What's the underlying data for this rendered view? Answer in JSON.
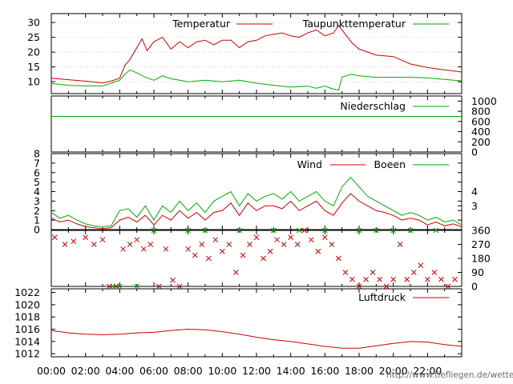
{
  "footer_url": "http://www.tiefliegen.de/wetter/",
  "x_ticks": [
    "00:00",
    "02:00",
    "04:00",
    "06:00",
    "08:00",
    "10:00",
    "12:00",
    "14:00",
    "16:00",
    "18:00",
    "20:00",
    "22:00"
  ],
  "colors": {
    "red": "#cc0000",
    "green": "#00aa00",
    "grid": "#aaaaaa",
    "axis": "#000000"
  },
  "chart_data": [
    {
      "type": "line",
      "y_ticks": [
        10,
        15,
        20,
        25,
        30
      ],
      "ylim": [
        6,
        33
      ],
      "legend": [
        "Temperatur",
        "Taupunkttemperatur"
      ],
      "series": [
        {
          "name": "Temperatur",
          "color": "#cc0000",
          "x": [
            0,
            1,
            2,
            3,
            3.5,
            4,
            4.3,
            4.6,
            5,
            5.3,
            5.6,
            6,
            6.5,
            7,
            7.5,
            8,
            8.5,
            9,
            9.5,
            10,
            10.5,
            11,
            11.5,
            12,
            12.5,
            13,
            13.5,
            14,
            14.5,
            15,
            15.5,
            16,
            16.5,
            16.8,
            17.2,
            17.6,
            18,
            19,
            20,
            21,
            22,
            23,
            24
          ],
          "y": [
            11.2,
            10.7,
            10.2,
            9.6,
            10.2,
            11.2,
            15.5,
            17.5,
            21.5,
            24.5,
            20.5,
            23.5,
            25,
            21,
            23.5,
            21.5,
            23.5,
            24,
            22.5,
            24,
            24,
            21.5,
            23.5,
            24,
            25.5,
            26,
            26.5,
            25.5,
            25,
            26.5,
            27.5,
            25.5,
            26.5,
            29,
            26,
            23,
            21,
            19,
            18.5,
            16,
            14.8,
            14,
            13.3
          ]
        },
        {
          "name": "Taupunkttemperatur",
          "color": "#00aa00",
          "x": [
            0,
            1,
            2,
            3,
            3.5,
            4,
            4.3,
            4.6,
            5,
            5.5,
            6,
            6.5,
            7,
            7.5,
            8,
            9,
            10,
            11,
            12,
            13,
            14,
            15,
            15.5,
            16,
            16.5,
            16.8,
            17,
            17.5,
            18,
            19,
            20,
            21,
            22,
            23,
            24
          ],
          "y": [
            9.4,
            8.8,
            8.6,
            8.6,
            9.5,
            10.5,
            12.5,
            14,
            13,
            11.5,
            10.5,
            12,
            11,
            10.5,
            10,
            10.5,
            10,
            10.5,
            9.5,
            8.8,
            8.2,
            8.5,
            7.8,
            8.5,
            7.5,
            7.2,
            11.5,
            12.5,
            12,
            11.5,
            11.5,
            11.5,
            11.3,
            10.8,
            10.3
          ]
        }
      ]
    },
    {
      "type": "line",
      "y_ticks_right": [
        0,
        200,
        400,
        600,
        800,
        1000
      ],
      "ylim": [
        0,
        1100
      ],
      "legend": [
        "Niederschlag"
      ],
      "series": [
        {
          "name": "Niederschlag",
          "color": "#00aa00",
          "x": [
            0,
            24
          ],
          "y": [
            700,
            700
          ]
        }
      ]
    },
    {
      "type": "line",
      "y_ticks": [
        0,
        1,
        2,
        3,
        4,
        5,
        6,
        7,
        8
      ],
      "y_ticks_right": [
        {
          "label": "3",
          "y": 2.5
        },
        {
          "label": "4",
          "y": 4.0
        }
      ],
      "ylim": [
        0,
        8
      ],
      "legend": [
        "Wind",
        "Boeen"
      ],
      "series": [
        {
          "name": "Wind",
          "color": "#cc0000",
          "x": [
            0,
            0.5,
            1,
            1.5,
            2,
            2.5,
            3,
            3.5,
            4,
            4.5,
            5,
            5.5,
            6,
            6.5,
            7,
            7.5,
            8,
            8.5,
            9,
            9.5,
            10,
            10.5,
            11,
            11.5,
            12,
            12.5,
            13,
            13.5,
            14,
            14.5,
            15,
            15.5,
            16,
            16.5,
            17,
            17.5,
            18,
            18.5,
            19,
            19.5,
            20,
            20.5,
            21,
            21.5,
            22,
            22.5,
            23,
            23.5,
            24
          ],
          "y": [
            1.2,
            0.8,
            1,
            0.6,
            0.3,
            0.2,
            0.1,
            0.2,
            1,
            1.3,
            0.8,
            1.5,
            0.5,
            1.5,
            1,
            2,
            1.2,
            1.8,
            1,
            1.8,
            2,
            2.8,
            1.5,
            2.8,
            2,
            2.5,
            2.5,
            2.2,
            3,
            2,
            2.5,
            3,
            2,
            1.5,
            2.8,
            3.8,
            3,
            2.5,
            2,
            1.8,
            1.5,
            1,
            1.2,
            1,
            0.5,
            0.8,
            0.4,
            0.6,
            0.3
          ]
        },
        {
          "name": "Boeen",
          "color": "#00aa00",
          "x": [
            0,
            0.5,
            1,
            1.5,
            2,
            2.5,
            3,
            3.5,
            4,
            4.5,
            5,
            5.5,
            6,
            6.5,
            7,
            7.5,
            8,
            8.5,
            9,
            9.5,
            10,
            10.5,
            11,
            11.5,
            12,
            12.5,
            13,
            13.5,
            14,
            14.5,
            15,
            15.5,
            16,
            16.5,
            17,
            17.5,
            18,
            18.5,
            19,
            19.5,
            20,
            20.5,
            21,
            21.5,
            22,
            22.5,
            23,
            23.5,
            24
          ],
          "y": [
            1.8,
            1.2,
            1.5,
            1,
            0.6,
            0.4,
            0.3,
            0.4,
            2,
            2.2,
            1.3,
            2.5,
            1,
            2.5,
            1.8,
            3,
            2,
            2.8,
            1.8,
            3,
            3.5,
            4,
            2.5,
            3.8,
            3,
            3.5,
            3.8,
            3.2,
            4,
            3,
            3.5,
            4,
            3,
            2.5,
            4.5,
            5.5,
            4.5,
            3.5,
            3,
            2.5,
            2,
            1.5,
            1.8,
            1.5,
            1,
            1.3,
            0.8,
            1,
            0.5
          ]
        }
      ]
    },
    {
      "type": "scatter",
      "y_ticks_right": [
        0,
        90,
        180,
        270,
        360
      ],
      "ylim": [
        0,
        360
      ],
      "series": [
        {
          "name": "Wind",
          "color": "#cc0000",
          "x": [
            0.2,
            0.8,
            1.3,
            2,
            2.5,
            3,
            3.4,
            3.8,
            4.2,
            4.6,
            5,
            5.4,
            5.8,
            6.3,
            6.7,
            7.1,
            7.5,
            8,
            8.4,
            8.8,
            9.2,
            9.6,
            10,
            10.4,
            10.8,
            11.2,
            11.6,
            12,
            12.4,
            12.8,
            13.2,
            13.6,
            14,
            14.4,
            14.8,
            15.2,
            15.6,
            16,
            16.4,
            16.8,
            17.2,
            17.6,
            18,
            18.4,
            18.8,
            19.2,
            19.6,
            20,
            20.4,
            20.8,
            21.2,
            21.6,
            22,
            22.4,
            22.8,
            23.2,
            23.6
          ],
          "y": [
            315,
            270,
            290,
            315,
            270,
            300,
            0,
            0,
            240,
            270,
            300,
            240,
            270,
            0,
            240,
            40,
            0,
            240,
            200,
            270,
            180,
            300,
            225,
            270,
            90,
            200,
            270,
            315,
            180,
            225,
            300,
            270,
            315,
            270,
            360,
            300,
            225,
            315,
            270,
            180,
            90,
            45,
            0,
            45,
            90,
            45,
            0,
            45,
            270,
            45,
            90,
            135,
            45,
            90,
            45,
            0,
            45
          ]
        },
        {
          "name": "Boeen",
          "color": "#00aa00",
          "x": [
            3.6,
            4,
            5,
            6,
            8,
            9,
            11,
            13,
            14.5,
            16,
            18,
            19,
            20,
            21,
            22.5
          ],
          "y": [
            0,
            0,
            0,
            360,
            360,
            360,
            360,
            360,
            360,
            360,
            360,
            360,
            360,
            360,
            360
          ]
        }
      ]
    },
    {
      "type": "line",
      "y_ticks": [
        1012,
        1014,
        1016,
        1018,
        1020,
        1022
      ],
      "ylim": [
        1011.5,
        1022.6
      ],
      "legend": [
        "Luftdruck"
      ],
      "series": [
        {
          "name": "Luftdruck",
          "color": "#cc0000",
          "x": [
            0,
            1,
            2,
            3,
            4,
            5,
            6,
            7,
            8,
            9,
            10,
            11,
            12,
            13,
            14,
            15,
            16,
            17,
            18,
            19,
            20,
            21,
            22,
            23,
            24
          ],
          "y": [
            1015.8,
            1015.4,
            1015.2,
            1015.1,
            1015.2,
            1015.4,
            1015.5,
            1015.8,
            1016,
            1015.9,
            1015.6,
            1015.2,
            1014.7,
            1014.3,
            1014,
            1013.6,
            1013.2,
            1012.9,
            1012.9,
            1013.3,
            1013.7,
            1014,
            1013.9,
            1013.5,
            1013.2
          ]
        }
      ]
    }
  ]
}
